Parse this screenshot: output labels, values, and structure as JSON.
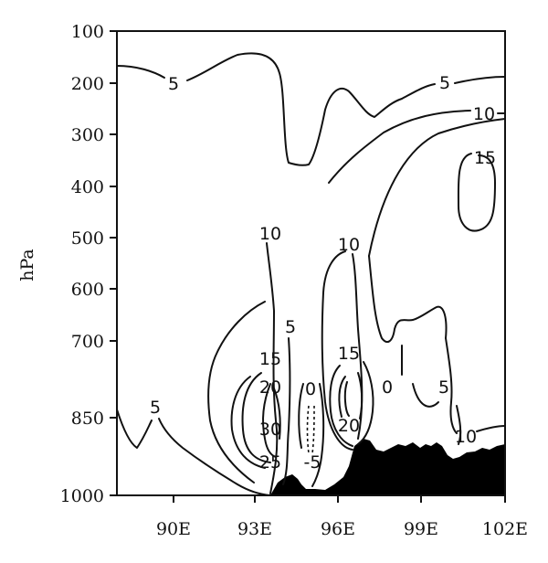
{
  "chart_data": {
    "type": "contour",
    "xlabel": "",
    "ylabel": "hPa",
    "x_ticks": [
      "90E",
      "93E",
      "96E",
      "99E",
      "102E"
    ],
    "y_ticks": [
      "100",
      "200",
      "300",
      "400",
      "500",
      "600",
      "700",
      "850",
      "1000"
    ],
    "contour_labels": [
      "5",
      "5",
      "10",
      "15",
      "5",
      "10",
      "10",
      "5",
      "15",
      "15",
      "20",
      "0",
      "30",
      "25",
      "-5",
      "20",
      "0",
      "5",
      "10"
    ],
    "terrain_fill": "black"
  }
}
